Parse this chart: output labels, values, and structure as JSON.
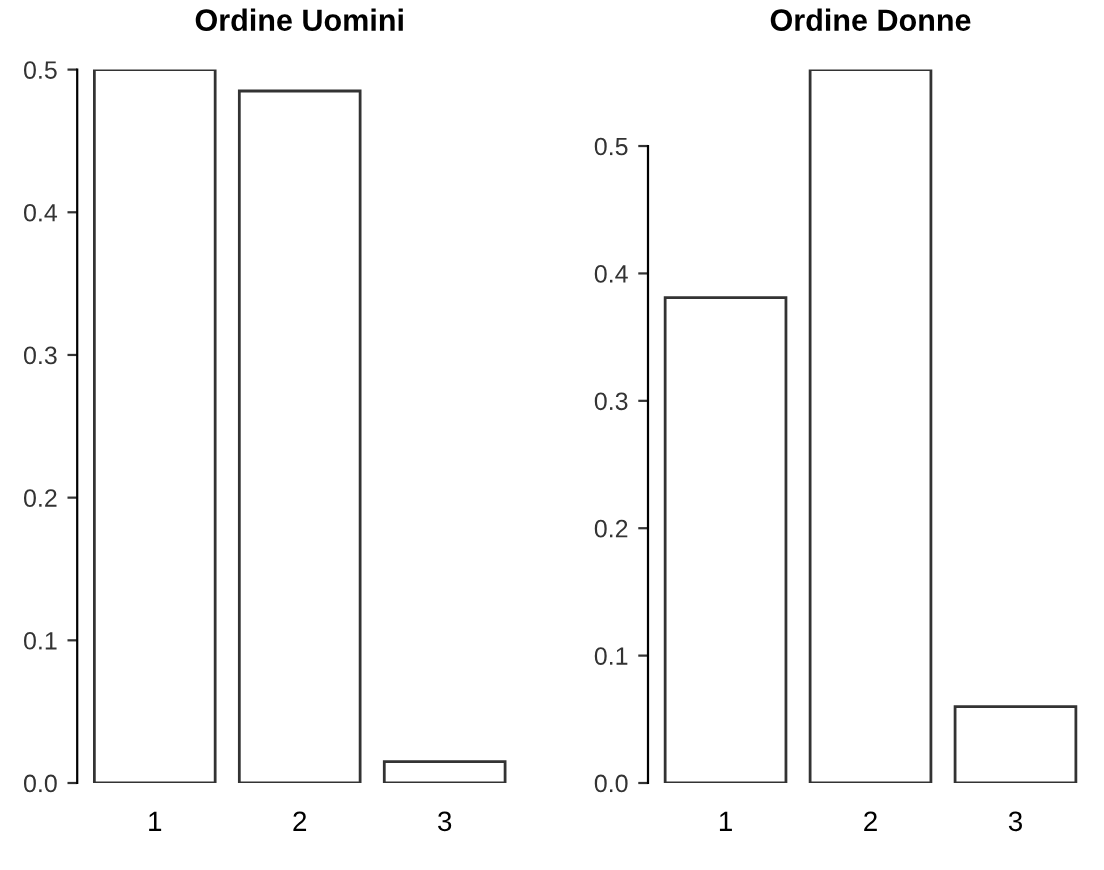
{
  "chart_data": [
    {
      "type": "bar",
      "title": "Ordine Uomini",
      "categories": [
        "1",
        "2",
        "3"
      ],
      "values": [
        0.5,
        0.485,
        0.015
      ],
      "color": "#ffffff",
      "ylim": [
        0,
        0.5
      ],
      "yticks": [
        {
          "value": 0,
          "label": "0.0"
        },
        0.1,
        0.2,
        0.3,
        0.4,
        0.5
      ],
      "grid": false
    },
    {
      "type": "bar",
      "title": "Ordine Donne",
      "categories": [
        "1",
        "2",
        "3"
      ],
      "values": [
        0.381,
        0.56,
        0.06
      ],
      "color": "#ffffff",
      "ylim": [
        0,
        0.56
      ],
      "yticks": [
        {
          "value": 0,
          "label": "0.0"
        },
        0.1,
        0.2,
        0.3,
        0.4,
        0.5
      ],
      "grid": false
    }
  ]
}
